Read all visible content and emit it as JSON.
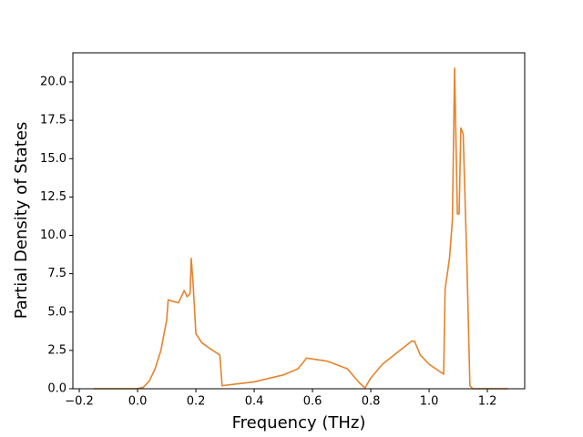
{
  "chart_data": {
    "type": "line",
    "xlabel": "Frequency (THz)",
    "ylabel": "Partial Density of States",
    "x": [
      -0.15,
      0.0,
      0.02,
      0.04,
      0.06,
      0.08,
      0.09,
      0.1,
      0.105,
      0.12,
      0.14,
      0.16,
      0.17,
      0.18,
      0.184,
      0.19,
      0.2,
      0.22,
      0.25,
      0.282,
      0.29,
      0.4,
      0.5,
      0.55,
      0.58,
      0.65,
      0.72,
      0.76,
      0.78,
      0.8,
      0.84,
      0.9,
      0.94,
      0.95,
      0.97,
      1.0,
      1.05,
      1.055,
      1.07,
      1.08,
      1.0875,
      1.097,
      1.103,
      1.109,
      1.117,
      1.13,
      1.14,
      1.15,
      1.27
    ],
    "series": [
      {
        "color": "#e5832c",
        "values": [
          0,
          0,
          0.1,
          0.5,
          1.3,
          2.5,
          3.5,
          4.5,
          5.8,
          5.7,
          5.6,
          6.4,
          6.0,
          6.2,
          8.5,
          7.0,
          3.6,
          3.0,
          2.6,
          2.2,
          0.2,
          0.45,
          0.9,
          1.3,
          2.0,
          1.8,
          1.3,
          0.4,
          0.05,
          0.7,
          1.6,
          2.5,
          3.1,
          3.1,
          2.2,
          1.6,
          0.95,
          6.5,
          8.5,
          11.0,
          20.9,
          11.4,
          11.4,
          17.0,
          16.6,
          8.0,
          0.2,
          0,
          0
        ]
      }
    ],
    "xlim": [
      -0.222,
      1.328
    ],
    "ylim": [
      0,
      21.9
    ],
    "xticks": [
      {
        "value": -0.2,
        "label": "−0.2"
      },
      {
        "value": 0.0,
        "label": "0.0"
      },
      0.2,
      0.4,
      0.6,
      0.8,
      {
        "value": 1.0,
        "label": "1.0"
      },
      1.2
    ],
    "yticks": [
      {
        "value": 0,
        "label": "0.0"
      },
      2.5,
      {
        "value": 5,
        "label": "5.0"
      },
      7.5,
      {
        "value": 10,
        "label": "10.0"
      },
      12.5,
      {
        "value": 15,
        "label": "15.0"
      },
      17.5,
      {
        "value": 20,
        "label": "20.0"
      }
    ]
  }
}
